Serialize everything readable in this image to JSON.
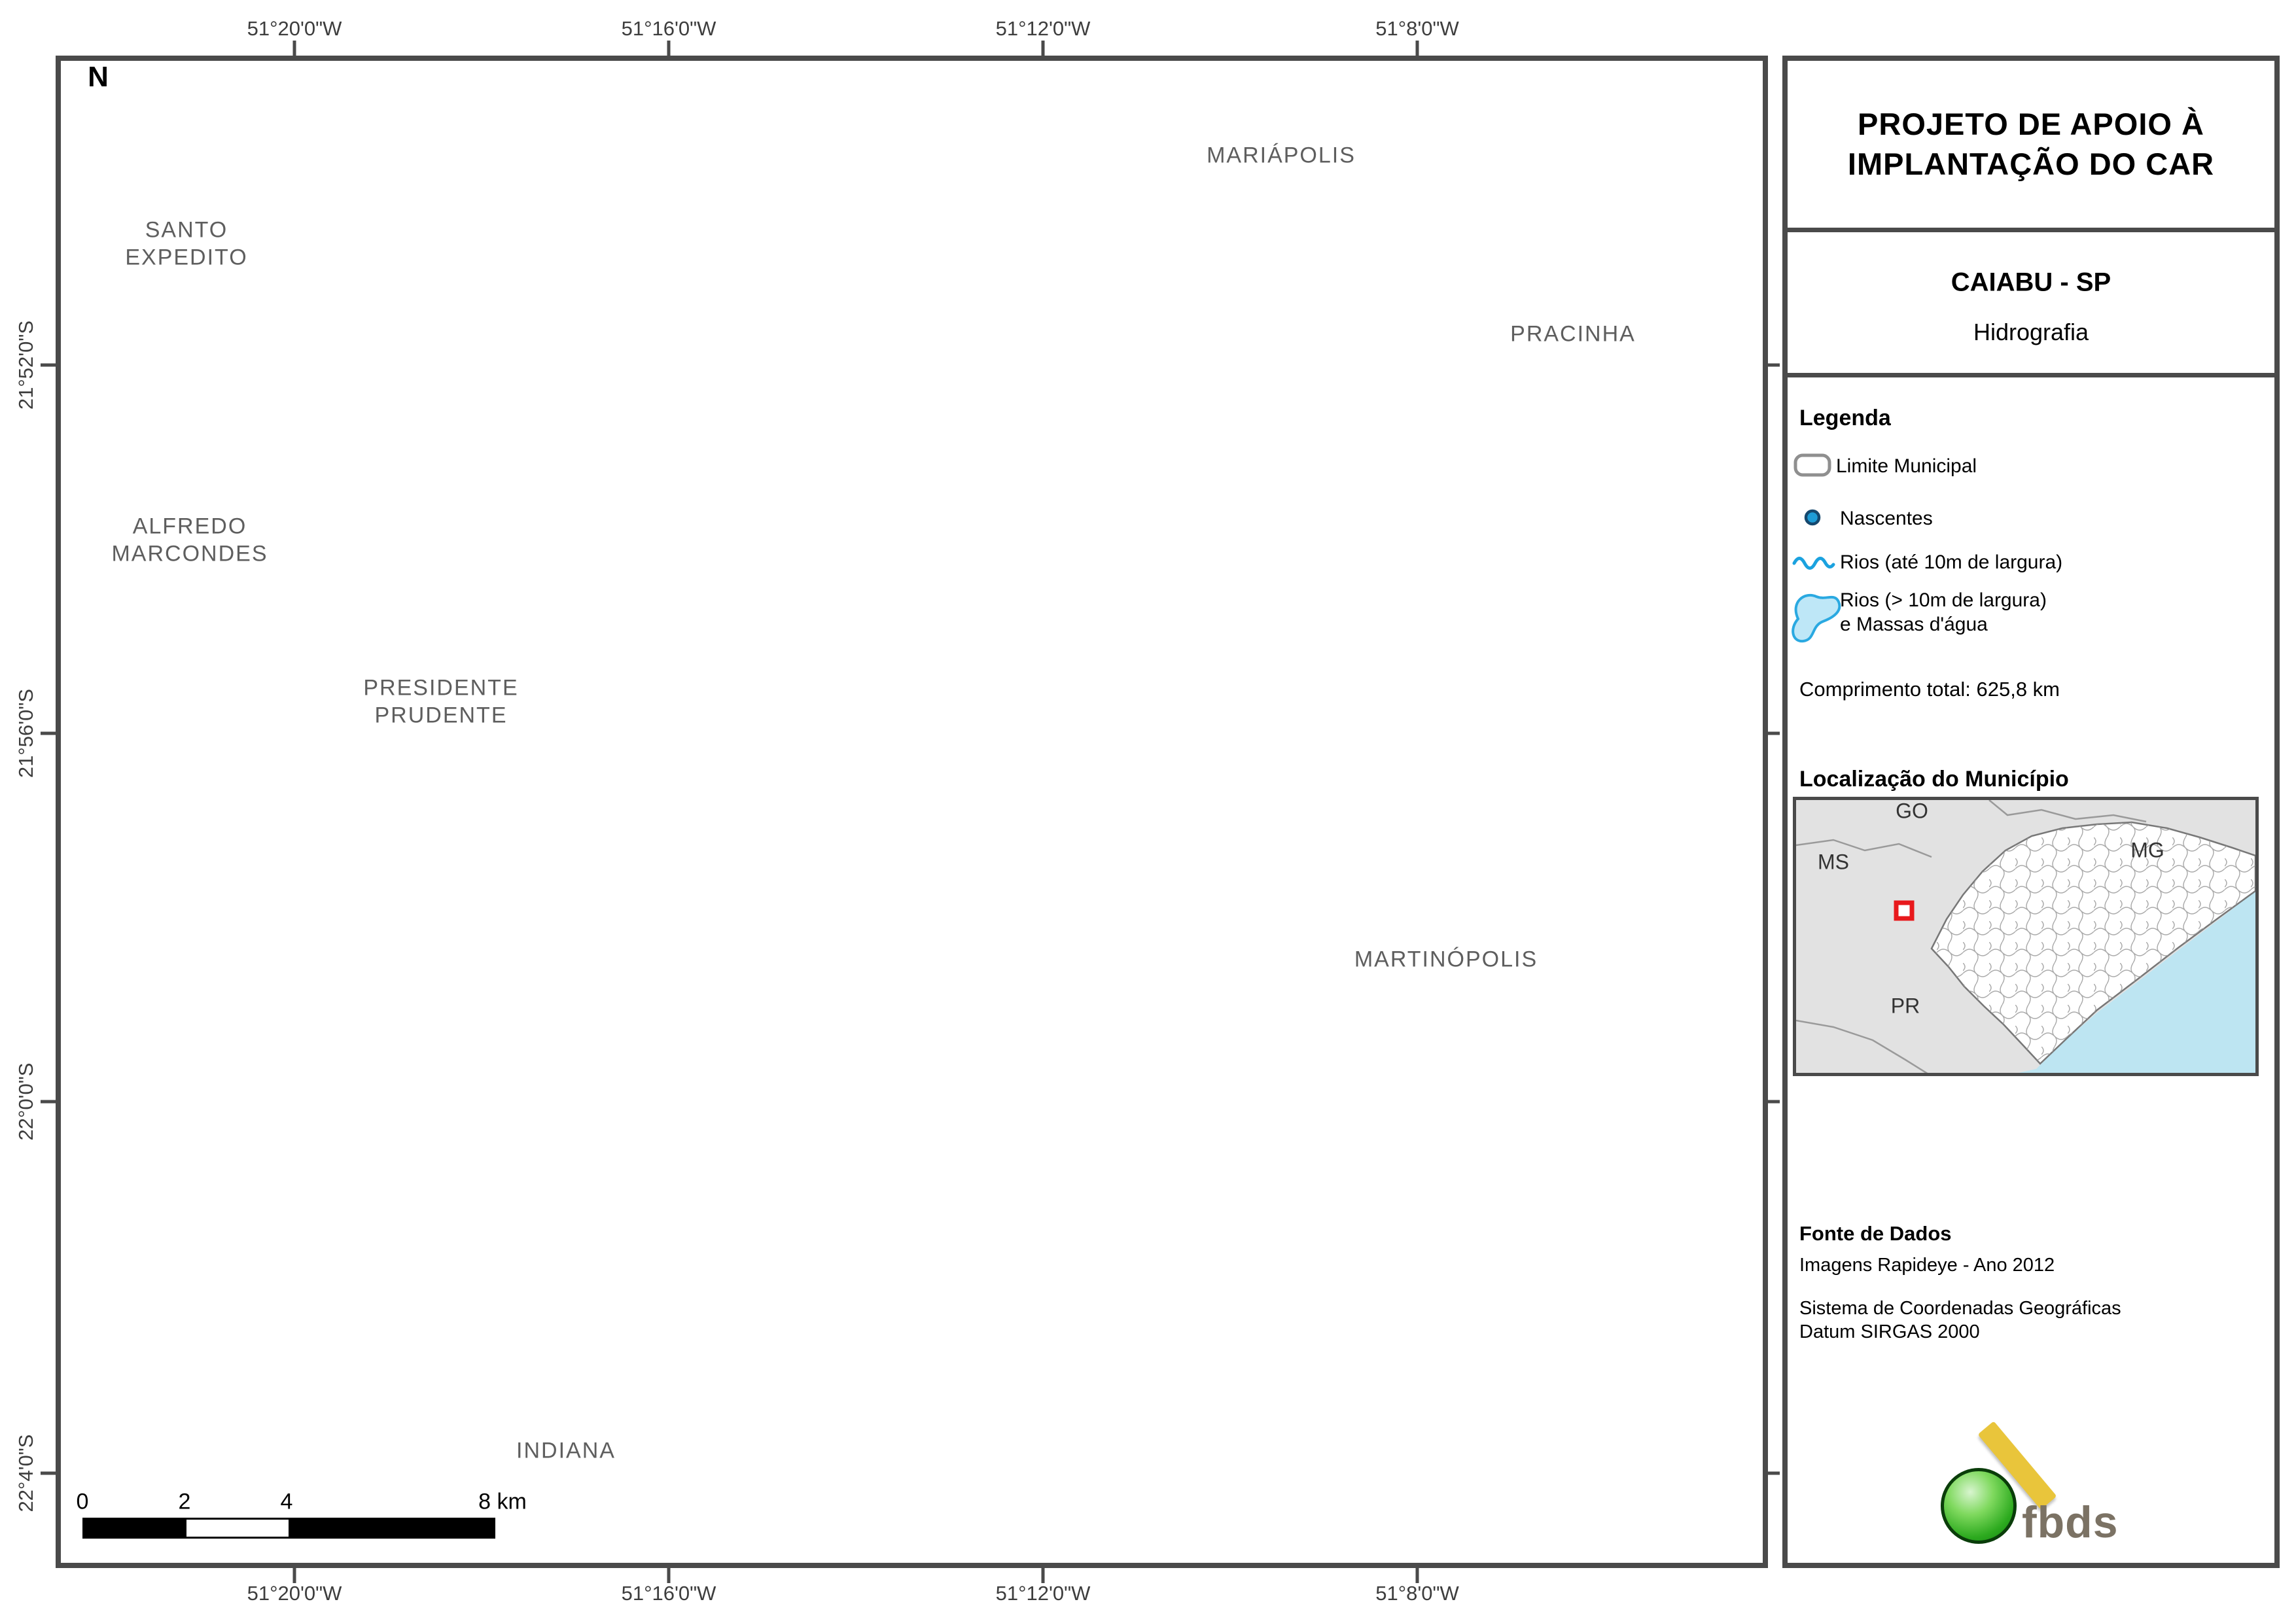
{
  "header": {
    "title_line1": "PROJETO DE APOIO À",
    "title_line2": "IMPLANTAÇÃO DO CAR",
    "municipality": "CAIABU - SP",
    "theme": "Hidrografia"
  },
  "legend": {
    "header": "Legenda",
    "limite": "Limite Municipal",
    "nascentes": "Nascentes",
    "rios_small": "Rios (até 10m de largura)",
    "rios_large_1": "Rios (> 10m de largura)",
    "rios_large_2": "e Massas d'água",
    "total": "Comprimento total: 625,8 km"
  },
  "location": {
    "header": "Localização do Município",
    "go": "GO",
    "ms": "MS",
    "mg": "MG",
    "pr": "PR"
  },
  "source": {
    "header": "Fonte de Dados",
    "imagery": "Imagens Rapideye - Ano 2012",
    "crs_line1": "Sistema de Coordenadas Geográficas",
    "crs_line2": "Datum SIRGAS 2000"
  },
  "logo": {
    "text": "fbds"
  },
  "map": {
    "north": "N",
    "neighbors": {
      "santo_expedito_1": "SANTO",
      "santo_expedito_2": "EXPEDITO",
      "alfredo_1": "ALFREDO",
      "alfredo_2": "MARCONDES",
      "presidente_1": "PRESIDENTE",
      "presidente_2": "PRUDENTE",
      "mariapolis": "MARIÁPOLIS",
      "pracinha": "PRACINHA",
      "martinopolis": "MARTINÓPOLIS",
      "indiana": "INDIANA"
    },
    "coords_top": [
      "51°20'0\"W",
      "51°16'0\"W",
      "51°12'0\"W",
      "51°8'0\"W"
    ],
    "coords_bottom": [
      "51°20'0\"W",
      "51°16'0\"W",
      "51°12'0\"W",
      "51°8'0\"W"
    ],
    "coords_left": [
      "21°52'0\"S",
      "21°56'0\"S",
      "22°0'0\"S",
      "22°4'0\"S"
    ],
    "scale_ticks": [
      "0",
      "2",
      "4",
      "8 km"
    ]
  },
  "colors": {
    "river": "#1BA2DF",
    "nascente_fill": "#1E9CD6",
    "nascente_ring": "#15486E",
    "municipality_fill": "#FCF4DC",
    "municipality_border": "#8F8F8F",
    "boundary_line": "#8A8A8A",
    "water_body": "#BEE7F7",
    "ocean": "#BDE5F2",
    "marker_red": "#E8191C",
    "frame": "#4A4A4A"
  }
}
